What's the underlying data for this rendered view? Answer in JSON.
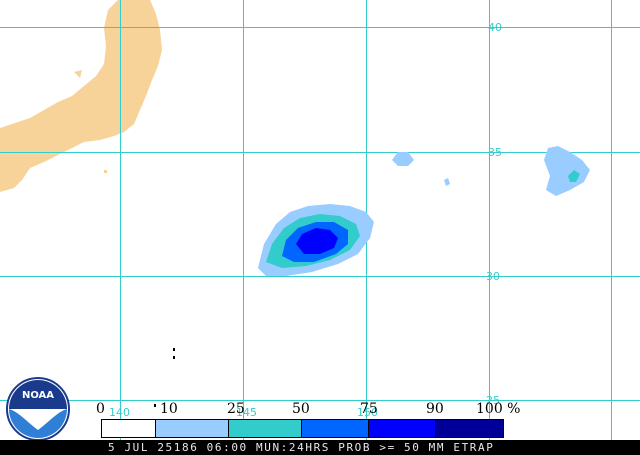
{
  "grid_labels": {
    "lat": [
      "40",
      "35",
      "30",
      "25"
    ],
    "lon": [
      "140",
      "145",
      "150"
    ]
  },
  "legend": {
    "labels": [
      "0",
      "10",
      "25",
      "50",
      "75",
      "90",
      "100 %"
    ],
    "colors": [
      "#ffffff",
      "#99ccff",
      "#33cccc",
      "#0066ff",
      "#0000ff",
      "#000099"
    ]
  },
  "colors": {
    "land": "#f7d39a",
    "grid": "#33cccc",
    "background": "#ffffff"
  },
  "logo": {
    "text": "NOAA"
  },
  "status": {
    "text": "5 JUL 25186 06:00 MUN:24HRS PROB >= 50 MM ETRAP"
  }
}
